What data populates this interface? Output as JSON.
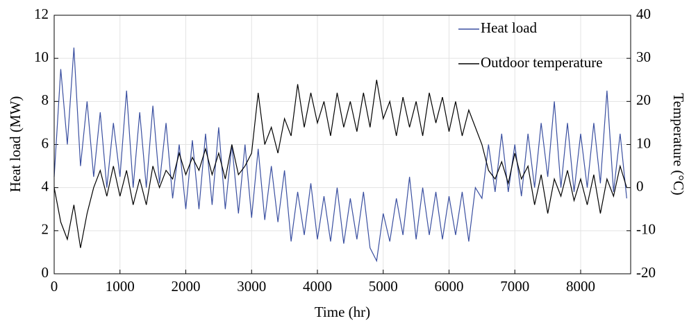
{
  "chart_data": {
    "type": "line",
    "x_label": "Time (hr)",
    "y_label": "Heat load (MW)",
    "y2_label": "Temperature (°C)",
    "x": [
      0,
      100,
      200,
      300,
      400,
      500,
      600,
      700,
      800,
      900,
      1000,
      1100,
      1200,
      1300,
      1400,
      1500,
      1600,
      1700,
      1800,
      1900,
      2000,
      2100,
      2200,
      2300,
      2400,
      2500,
      2600,
      2700,
      2800,
      2900,
      3000,
      3100,
      3200,
      3300,
      3400,
      3500,
      3600,
      3700,
      3800,
      3900,
      4000,
      4100,
      4200,
      4300,
      4400,
      4500,
      4600,
      4700,
      4800,
      4900,
      5000,
      5100,
      5200,
      5300,
      5400,
      5500,
      5600,
      5700,
      5800,
      5900,
      6000,
      6100,
      6200,
      6300,
      6400,
      6500,
      6600,
      6700,
      6800,
      6900,
      7000,
      7100,
      7200,
      7300,
      7400,
      7500,
      7600,
      7700,
      7800,
      7900,
      8000,
      8100,
      8200,
      8300,
      8400,
      8500,
      8600,
      8700
    ],
    "series": [
      {
        "name": "Heat load",
        "color": "#3a4fa0",
        "values": [
          4.5,
          9.5,
          6,
          10.5,
          5,
          8,
          4.5,
          7.5,
          4,
          7,
          4.5,
          8.5,
          4,
          7.5,
          4,
          7.8,
          4.2,
          7,
          3.5,
          6,
          3,
          6.2,
          3,
          6.5,
          3.2,
          6.8,
          3,
          6,
          2.8,
          6,
          2.6,
          5.8,
          2.5,
          5,
          2.4,
          4.8,
          1.5,
          3.8,
          1.8,
          4.2,
          1.6,
          3.6,
          1.5,
          4,
          1.4,
          3.5,
          1.6,
          3.8,
          1.2,
          0.6,
          2.8,
          1.5,
          3.5,
          1.8,
          4.5,
          1.6,
          4,
          1.8,
          3.8,
          1.6,
          3.6,
          1.8,
          3.8,
          1.5,
          4,
          3.5,
          6,
          3.8,
          6.5,
          3.8,
          6,
          3.6,
          6.5,
          4,
          7,
          4.5,
          8,
          4,
          7,
          3.8,
          6.5,
          4,
          7,
          4.2,
          8.5,
          3.8,
          6.5,
          3.5
        ]
      },
      {
        "name": "Outdoor temperature",
        "color": "#000000",
        "axis": "y2",
        "values": [
          0,
          -8,
          -12,
          -4,
          -14,
          -6,
          0,
          4,
          -2,
          5,
          -2,
          4,
          -4,
          2,
          -4,
          5,
          0,
          4,
          2,
          8,
          3,
          7,
          4,
          9,
          3,
          8,
          2,
          10,
          3,
          5,
          8,
          22,
          10,
          14,
          8,
          16,
          12,
          24,
          14,
          22,
          15,
          20,
          12,
          22,
          14,
          20,
          13,
          22,
          14,
          25,
          16,
          20,
          12,
          21,
          14,
          20,
          12,
          22,
          15,
          21,
          13,
          20,
          12,
          18,
          14,
          10,
          4,
          2,
          6,
          1,
          8,
          2,
          5,
          -4,
          3,
          -6,
          2,
          -2,
          4,
          -3,
          2,
          -4,
          3,
          -6,
          2,
          -2,
          5,
          0
        ]
      }
    ],
    "xlim": [
      0,
      8760
    ],
    "xticks": [
      0,
      1000,
      2000,
      3000,
      4000,
      5000,
      6000,
      7000,
      8000
    ],
    "ylim": [
      0,
      12
    ],
    "yticks": [
      0,
      2,
      4,
      6,
      8,
      10,
      12
    ],
    "y2lim": [
      -20,
      40
    ],
    "y2ticks": [
      -20,
      -10,
      0,
      10,
      20,
      30,
      40
    ],
    "grid": true,
    "legend": "upper right"
  }
}
